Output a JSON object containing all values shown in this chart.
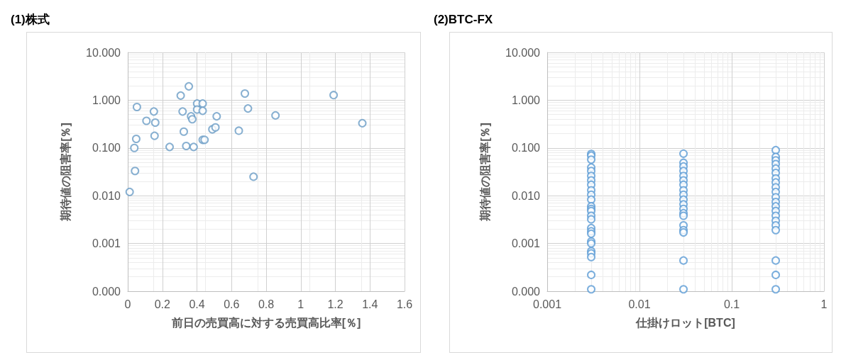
{
  "chart_data": [
    {
      "type": "scatter",
      "title": "(1)株式",
      "xlabel": "前日の売買高に対する売買高比率[％]",
      "ylabel": "期待値の阻害率[％]",
      "log": "y",
      "grid": true,
      "marker": "circle",
      "xlim": [
        0,
        1.6
      ],
      "xticks": [
        0,
        0.2,
        0.4,
        0.6,
        0.8,
        1,
        1.2,
        1.4,
        1.6
      ],
      "ylim": [
        0.0001,
        10
      ],
      "yticks": [
        {
          "value": 0.0001,
          "label": "0.000"
        },
        {
          "value": 0.001,
          "label": "0.001"
        },
        {
          "value": 0.01,
          "label": "0.010"
        },
        {
          "value": 0.1,
          "label": "0.100"
        },
        {
          "value": 1,
          "label": "1.000"
        },
        {
          "value": 10,
          "label": "10.000"
        }
      ],
      "series": [
        {
          "color": "#6a9cc6",
          "x": [
            0.353,
            0.306,
            0.677,
            1.19,
            0.053,
            0.151,
            0.317,
            0.401,
            0.433,
            0.401,
            0.433,
            0.695,
            0.366,
            0.373,
            0.514,
            0.854,
            1.356,
            0.108,
            0.159,
            0.324,
            0.489,
            0.507,
            0.642,
            0.155,
            0.049,
            0.038,
            0.242,
            0.338,
            0.381,
            0.433,
            0.444,
            0.042,
            0.727,
            0.011
          ],
          "values": [
            1.95,
            1.25,
            1.38,
            1.28,
            0.72,
            0.58,
            0.58,
            0.85,
            0.85,
            0.64,
            0.6,
            0.67,
            0.46,
            0.4,
            0.46,
            0.48,
            0.33,
            0.37,
            0.34,
            0.22,
            0.245,
            0.27,
            0.23,
            0.18,
            0.155,
            0.1,
            0.105,
            0.11,
            0.105,
            0.148,
            0.148,
            0.033,
            0.025,
            0.012
          ]
        }
      ]
    },
    {
      "type": "scatter",
      "title": "(2)BTC-FX",
      "xlabel": "仕掛けロット[BTC]",
      "ylabel": "期待値の阻害率[％]",
      "log": "xy",
      "grid": true,
      "marker": "circle",
      "xlim": [
        0.001,
        1
      ],
      "xticks": [
        0.001,
        0.01,
        0.1,
        1
      ],
      "ylim": [
        0.0001,
        10
      ],
      "yticks": [
        {
          "value": 0.0001,
          "label": "0.000"
        },
        {
          "value": 0.001,
          "label": "0.001"
        },
        {
          "value": 0.01,
          "label": "0.010"
        },
        {
          "value": 0.1,
          "label": "0.100"
        },
        {
          "value": 1,
          "label": "1.000"
        },
        {
          "value": 10,
          "label": "10.000"
        }
      ],
      "series": [
        {
          "color": "#5b9bd5",
          "x": [
            0.003,
            0.003,
            0.003,
            0.003,
            0.003,
            0.003,
            0.003,
            0.003,
            0.003,
            0.003,
            0.003,
            0.003,
            0.003,
            0.003,
            0.003,
            0.003,
            0.003,
            0.003,
            0.003,
            0.003,
            0.003,
            0.003,
            0.003,
            0.003,
            0.003,
            0.003,
            0.03,
            0.03,
            0.03,
            0.03,
            0.03,
            0.03,
            0.03,
            0.03,
            0.03,
            0.03,
            0.03,
            0.03,
            0.03,
            0.03,
            0.03,
            0.03,
            0.03,
            0.03,
            0.03,
            0.3,
            0.3,
            0.3,
            0.3,
            0.3,
            0.3,
            0.3,
            0.3,
            0.3,
            0.3,
            0.3,
            0.3,
            0.3,
            0.3,
            0.3,
            0.3,
            0.3,
            0.3,
            0.3,
            0.3,
            0.3
          ],
          "values": [
            0.075,
            0.069,
            0.057,
            0.039,
            0.033,
            0.026,
            0.021,
            0.017,
            0.013,
            0.0105,
            0.0083,
            0.006,
            0.0053,
            0.0048,
            0.0038,
            0.0032,
            0.0021,
            0.0018,
            0.0016,
            0.0011,
            0.001,
            0.00069,
            0.00062,
            0.00052,
            0.00022,
            0.00011,
            0.076,
            0.049,
            0.041,
            0.033,
            0.026,
            0.021,
            0.017,
            0.013,
            0.0105,
            0.0083,
            0.0066,
            0.0053,
            0.0043,
            0.0038,
            0.0024,
            0.0019,
            0.0017,
            0.00044,
            0.00011,
            0.09,
            0.065,
            0.055,
            0.046,
            0.037,
            0.03,
            0.023,
            0.019,
            0.015,
            0.012,
            0.0093,
            0.0074,
            0.006,
            0.0048,
            0.0038,
            0.003,
            0.0024,
            0.0019,
            0.00044,
            0.00022,
            0.00011
          ]
        }
      ]
    }
  ]
}
